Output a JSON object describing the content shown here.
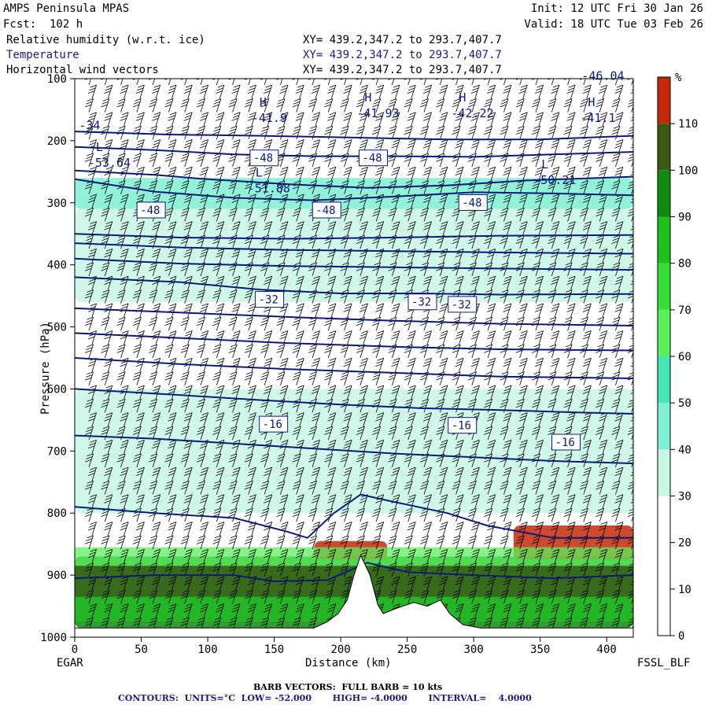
{
  "header": {
    "model": "AMPS Peninsula MPAS",
    "forecast": "Fcst:  102 h",
    "init": "Init: 12 UTC Fri 30 Jan 26",
    "valid": "Valid: 18 UTC Tue 03 Feb 26",
    "fields": [
      {
        "label": "Relative humidity (w.r.t. ice)",
        "xy": "XY= 439.2,347.2 to 293.7,407.7"
      },
      {
        "label": "Temperature",
        "xy": "XY= 439.2,347.2 to 293.7,407.7"
      },
      {
        "label": "Horizontal wind vectors",
        "xy": "XY= 439.2,347.2 to 293.7,407.7"
      }
    ]
  },
  "footer": {
    "left_station": "EGAR",
    "right_station": "FSSL_BLF",
    "barb_note": "BARB VECTORS:  FULL BARB = 10 kts",
    "contours": "CONTOURS:  UNITS=°C  LOW= -52.000       HIGH= -4.0000       INTERVAL=    4.0000"
  },
  "colors": {
    "contour": "#0a1a7a",
    "rh_bins": [
      "#ffffff",
      "#ffffff",
      "#ffffff",
      "#c8f7e6",
      "#7ff0d2",
      "#46e6b4",
      "#5cef5c",
      "#36de36",
      "#1fbf1f",
      "#118a11",
      "#3a5a14",
      "#c42a0a"
    ]
  },
  "chart_data": {
    "type": "heatmap",
    "title": "",
    "xlabel": "Distance (km)",
    "ylabel": "Pressure (hPa)",
    "xlim": [
      0,
      420
    ],
    "ylim": [
      1000,
      100
    ],
    "xticks": [
      "0",
      "50",
      "100",
      "150",
      "200",
      "250",
      "300",
      "350",
      "400"
    ],
    "yticks": [
      "100",
      "200",
      "300",
      "400",
      "500",
      "600",
      "700",
      "800",
      "900",
      "1000"
    ],
    "colorbar": {
      "unit": "%",
      "ticks": [
        "110",
        "100",
        "90",
        "80",
        "70",
        "60",
        "50",
        "40",
        "30",
        "20",
        "10",
        "0"
      ],
      "bounds": [
        -10,
        0,
        10,
        20,
        30,
        40,
        50,
        60,
        70,
        80,
        90,
        100,
        110,
        120
      ]
    },
    "terrain_surface_hpa": [
      [
        0,
        985
      ],
      [
        50,
        985
      ],
      [
        100,
        985
      ],
      [
        150,
        985
      ],
      [
        180,
        985
      ],
      [
        190,
        975
      ],
      [
        198,
        962
      ],
      [
        205,
        940
      ],
      [
        210,
        900
      ],
      [
        215,
        868
      ],
      [
        222,
        900
      ],
      [
        228,
        948
      ],
      [
        232,
        962
      ],
      [
        240,
        955
      ],
      [
        255,
        944
      ],
      [
        265,
        950
      ],
      [
        275,
        940
      ],
      [
        282,
        962
      ],
      [
        292,
        980
      ],
      [
        305,
        985
      ],
      [
        340,
        985
      ],
      [
        380,
        985
      ],
      [
        400,
        985
      ],
      [
        420,
        985
      ]
    ],
    "humidity_layers": [
      {
        "range": "30-60",
        "x": [
          0,
          420
        ],
        "p": [
          260,
          310
        ]
      },
      {
        "range": "30-50",
        "x": [
          0,
          420
        ],
        "p": [
          310,
          460
        ]
      },
      {
        "range": "30-50",
        "x": [
          0,
          420
        ],
        "p": [
          600,
          800
        ]
      },
      {
        "range": "70-100",
        "x": [
          0,
          420
        ],
        "p": [
          870,
          985
        ]
      },
      {
        "range": "110+",
        "x": [
          180,
          235
        ],
        "p": [
          845,
          875
        ]
      },
      {
        "range": "110+",
        "x": [
          330,
          420
        ],
        "p": [
          820,
          875
        ]
      }
    ],
    "temperature_contours": [
      {
        "label": "-48",
        "points": [
          [
            0,
            262
          ],
          [
            60,
            282
          ],
          [
            120,
            292
          ],
          [
            180,
            296
          ],
          [
            240,
            290
          ],
          [
            300,
            283
          ],
          [
            360,
            285
          ],
          [
            420,
            288
          ]
        ]
      },
      {
        "label": "-48",
        "points": [
          [
            0,
            248
          ],
          [
            60,
            255
          ],
          [
            100,
            262
          ],
          [
            160,
            270
          ],
          [
            220,
            276
          ],
          [
            280,
            272
          ],
          [
            340,
            264
          ],
          [
            420,
            258
          ]
        ]
      },
      {
        "label": "-48",
        "points": [
          [
            0,
            210
          ],
          [
            60,
            215
          ],
          [
            120,
            222
          ],
          [
            180,
            225
          ],
          [
            240,
            225
          ],
          [
            300,
            226
          ],
          [
            360,
            222
          ],
          [
            420,
            218
          ]
        ]
      },
      {
        "label": "-48",
        "points": [
          [
            0,
            185
          ],
          [
            70,
            190
          ],
          [
            140,
            192
          ],
          [
            210,
            195
          ],
          [
            280,
            198
          ],
          [
            350,
            198
          ],
          [
            420,
            192
          ]
        ]
      },
      {
        "label": "-44",
        "points": [
          [
            0,
            350
          ],
          [
            80,
            356
          ],
          [
            160,
            358
          ],
          [
            240,
            356
          ],
          [
            320,
            353
          ],
          [
            420,
            352
          ]
        ]
      },
      {
        "label": "-40",
        "points": [
          [
            0,
            365
          ],
          [
            80,
            372
          ],
          [
            160,
            376
          ],
          [
            240,
            378
          ],
          [
            320,
            380
          ],
          [
            420,
            382
          ]
        ]
      },
      {
        "label": "-36",
        "points": [
          [
            0,
            390
          ],
          [
            80,
            398
          ],
          [
            160,
            402
          ],
          [
            240,
            404
          ],
          [
            320,
            406
          ],
          [
            420,
            408
          ]
        ]
      },
      {
        "label": "-32",
        "points": [
          [
            0,
            420
          ],
          [
            80,
            428
          ],
          [
            140,
            440
          ],
          [
            200,
            446
          ],
          [
            260,
            446
          ],
          [
            320,
            448
          ],
          [
            420,
            447
          ]
        ]
      },
      {
        "label": "-28",
        "points": [
          [
            0,
            470
          ],
          [
            80,
            477
          ],
          [
            160,
            484
          ],
          [
            240,
            490
          ],
          [
            320,
            495
          ],
          [
            420,
            498
          ]
        ]
      },
      {
        "label": "-24",
        "points": [
          [
            0,
            510
          ],
          [
            80,
            518
          ],
          [
            160,
            526
          ],
          [
            240,
            532
          ],
          [
            320,
            536
          ],
          [
            420,
            538
          ]
        ]
      },
      {
        "label": "-20",
        "points": [
          [
            0,
            550
          ],
          [
            80,
            560
          ],
          [
            160,
            568
          ],
          [
            240,
            574
          ],
          [
            320,
            580
          ],
          [
            420,
            583
          ]
        ]
      },
      {
        "label": "-16",
        "points": [
          [
            0,
            600
          ],
          [
            80,
            610
          ],
          [
            140,
            618
          ],
          [
            200,
            625
          ],
          [
            260,
            631
          ],
          [
            320,
            634
          ],
          [
            380,
            638
          ],
          [
            420,
            640
          ]
        ]
      },
      {
        "label": "-12",
        "points": [
          [
            0,
            675
          ],
          [
            60,
            680
          ],
          [
            120,
            688
          ],
          [
            180,
            696
          ],
          [
            240,
            704
          ],
          [
            300,
            710
          ],
          [
            360,
            716
          ],
          [
            420,
            720
          ]
        ]
      },
      {
        "label": "-8",
        "points": [
          [
            0,
            790
          ],
          [
            60,
            800
          ],
          [
            120,
            808
          ],
          [
            160,
            830
          ],
          [
            175,
            840
          ],
          [
            195,
            800
          ],
          [
            215,
            770
          ],
          [
            240,
            782
          ],
          [
            280,
            800
          ],
          [
            310,
            820
          ],
          [
            360,
            840
          ],
          [
            420,
            840
          ]
        ]
      },
      {
        "label": "-4",
        "points": [
          [
            0,
            905
          ],
          [
            60,
            900
          ],
          [
            120,
            900
          ],
          [
            150,
            910
          ],
          [
            190,
            908
          ],
          [
            220,
            880
          ],
          [
            250,
            895
          ],
          [
            300,
            900
          ],
          [
            360,
            905
          ],
          [
            420,
            900
          ]
        ]
      }
    ],
    "contour_labels": [
      {
        "text": "-48",
        "x": 133,
        "p": 234
      },
      {
        "text": "-48",
        "x": 215,
        "p": 234
      },
      {
        "text": "-48",
        "x": 48,
        "p": 318
      },
      {
        "text": "-48",
        "x": 180,
        "p": 318
      },
      {
        "text": "-48",
        "x": 290,
        "p": 306
      },
      {
        "text": "-32",
        "x": 137,
        "p": 462
      },
      {
        "text": "-32",
        "x": 252,
        "p": 466
      },
      {
        "text": "-32",
        "x": 282,
        "p": 470
      },
      {
        "text": "-16",
        "x": 140,
        "p": 663
      },
      {
        "text": "-16",
        "x": 282,
        "p": 665
      },
      {
        "text": "-16",
        "x": 360,
        "p": 692
      }
    ],
    "extrema": [
      {
        "type": "H",
        "value": "-41.9",
        "x": 133,
        "p": 170
      },
      {
        "type": "H",
        "value": "-41.93",
        "x": 212,
        "p": 162
      },
      {
        "type": "H",
        "value": "-42.22",
        "x": 283,
        "p": 162
      },
      {
        "type": "H",
        "value": "-41.1",
        "x": 380,
        "p": 170
      },
      {
        "type": "L",
        "value": "-53.64",
        "x": 10,
        "p": 242
      },
      {
        "type": "L",
        "value": "-51.88",
        "x": 130,
        "p": 283
      },
      {
        "type": "L",
        "value": "-50.21",
        "x": 345,
        "p": 270
      }
    ],
    "edge_labels": [
      {
        "text": "-34",
        "x": 2,
        "p": 182
      },
      {
        "text": "-46.04",
        "x": 380,
        "p": 102
      }
    ],
    "wind_barbs": {
      "columns_x": [
        0,
        12,
        24,
        36,
        48,
        60,
        72,
        84,
        96,
        108,
        120,
        132,
        144,
        156,
        168,
        180,
        192,
        204,
        216,
        228,
        240,
        252,
        264,
        276,
        288,
        300,
        312,
        324,
        336,
        348,
        360,
        372,
        384,
        396,
        408
      ],
      "note": "wind barbs at every level"
    }
  }
}
